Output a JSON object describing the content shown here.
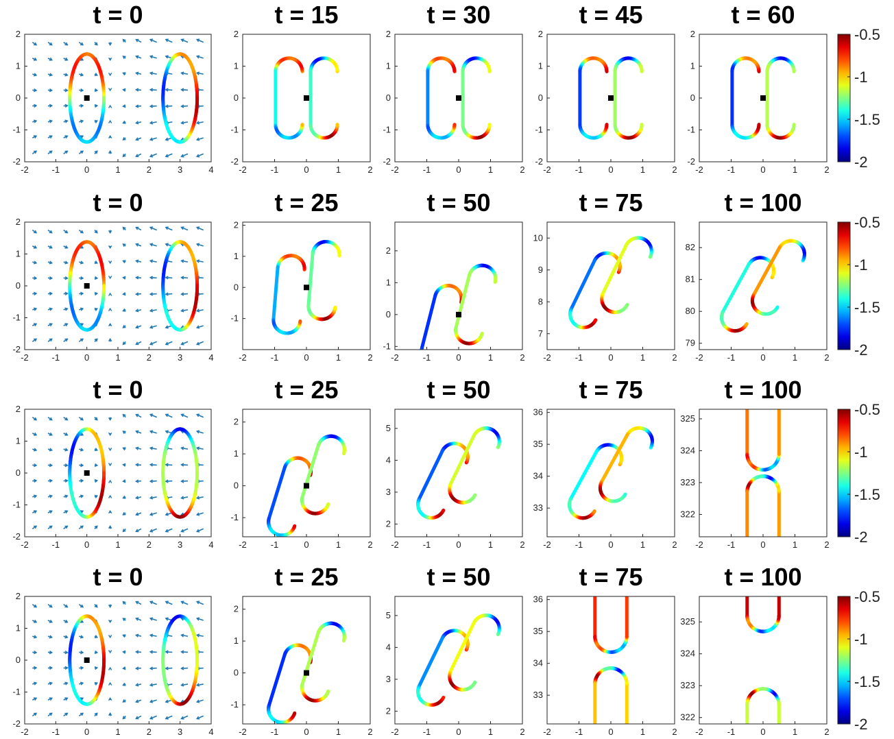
{
  "chart_data": {
    "type": "line",
    "colorbar": {
      "range": [
        -2,
        -0.5
      ],
      "ticks": [
        "-0.5",
        "-1",
        "-1.5",
        "-2"
      ],
      "colormap": "jet"
    },
    "rows": [
      {
        "panels": [
          {
            "title": "t = 0",
            "xlim": [
              -2,
              4
            ],
            "ylim": [
              -2,
              2
            ],
            "xticks": [
              "-2",
              "-1",
              "0",
              "1",
              "2",
              "3",
              "4"
            ],
            "yticks": [
              "2",
              "1",
              "0",
              "-1",
              "-2"
            ],
            "quiver": true,
            "curve": "ellipses",
            "colorPhase": 0.0,
            "marker": [
              0,
              0
            ]
          },
          {
            "title": "t = 15",
            "xlim": [
              -2,
              2
            ],
            "ylim": [
              -2,
              2
            ],
            "xticks": [
              "-2",
              "-1",
              "0",
              "1",
              "2"
            ],
            "yticks": [
              "2",
              "1",
              "0",
              "-1",
              "-2"
            ],
            "curve": "pair",
            "tilt": 0,
            "colorPhase": 0.3,
            "marker": [
              0,
              0
            ]
          },
          {
            "title": "t = 30",
            "xlim": [
              -2,
              2
            ],
            "ylim": [
              -2,
              2
            ],
            "xticks": [
              "-2",
              "-1",
              "0",
              "1",
              "2"
            ],
            "yticks": [
              "2",
              "1",
              "0",
              "-1",
              "-2"
            ],
            "curve": "pair",
            "tilt": 0,
            "colorPhase": 0.6,
            "marker": [
              0,
              0
            ]
          },
          {
            "title": "t = 45",
            "xlim": [
              -2,
              2
            ],
            "ylim": [
              -2,
              2
            ],
            "xticks": [
              "-2",
              "-1",
              "0",
              "1",
              "2"
            ],
            "yticks": [
              "2",
              "1",
              "0",
              "-1",
              "-2"
            ],
            "curve": "pair",
            "tilt": 0,
            "colorPhase": 0.9,
            "marker": [
              0,
              0
            ]
          },
          {
            "title": "t = 60",
            "xlim": [
              -2,
              2
            ],
            "ylim": [
              -2,
              2
            ],
            "xticks": [
              "-2",
              "-1",
              "0",
              "1",
              "2"
            ],
            "yticks": [
              "2",
              "1",
              "0",
              "-1",
              "-2"
            ],
            "curve": "pair",
            "tilt": 0,
            "colorPhase": 1.2,
            "marker": [
              0,
              0
            ]
          }
        ]
      },
      {
        "panels": [
          {
            "title": "t = 0",
            "xlim": [
              -2,
              4
            ],
            "ylim": [
              -2,
              2
            ],
            "xticks": [
              "-2",
              "-1",
              "0",
              "1",
              "2",
              "3",
              "4"
            ],
            "yticks": [
              "2",
              "1",
              "0",
              "-1",
              "-2"
            ],
            "quiver": true,
            "curve": "ellipses",
            "colorPhase": 0.2,
            "marker": [
              0,
              0
            ]
          },
          {
            "title": "t = 25",
            "xlim": [
              -2,
              2
            ],
            "ylim": [
              -2,
              2.1
            ],
            "xticks": [
              "-2",
              "-1",
              "0",
              "1",
              "2"
            ],
            "yticks": [
              "2",
              "1",
              "0",
              "-1"
            ],
            "curve": "pair",
            "tilt": 0.08,
            "colorPhase": 0.5,
            "marker": [
              0,
              0
            ]
          },
          {
            "title": "t = 50",
            "xlim": [
              -2,
              2
            ],
            "ylim": [
              -1.1,
              2.9
            ],
            "xticks": [
              "-2",
              "-1",
              "0",
              "1",
              "2"
            ],
            "yticks": [
              "2",
              "1",
              "0",
              "-1"
            ],
            "curve": "pair",
            "tilt": 0.25,
            "colorPhase": 1.0,
            "marker": [
              0,
              0
            ]
          },
          {
            "title": "t = 75",
            "xlim": [
              -2,
              2
            ],
            "ylim": [
              6.5,
              10.5
            ],
            "xticks": [
              "-2",
              "-1",
              "0",
              "1",
              "2"
            ],
            "yticks": [
              "10",
              "9",
              "8",
              "7"
            ],
            "curve": "pair",
            "tilt": 0.45,
            "colorPhase": 1.6,
            "center": [
              0,
              8.6
            ]
          },
          {
            "title": "t = 100",
            "xlim": [
              -2,
              2
            ],
            "ylim": [
              78.8,
              82.8
            ],
            "xticks": [
              "-2",
              "-1",
              "0",
              "1",
              "2"
            ],
            "yticks": [
              "82",
              "81",
              "80",
              "79"
            ],
            "curve": "pair",
            "tilt": 0.5,
            "colorPhase": 2.2,
            "center": [
              0,
              80.8
            ]
          }
        ]
      },
      {
        "panels": [
          {
            "title": "t = 0",
            "xlim": [
              -2,
              4
            ],
            "ylim": [
              -2,
              2
            ],
            "xticks": [
              "-2",
              "-1",
              "0",
              "1",
              "2",
              "3",
              "4"
            ],
            "yticks": [
              "2",
              "1",
              "0",
              "-1",
              "-2"
            ],
            "quiver": true,
            "curve": "ellipses",
            "colorPhase": 1.8,
            "marker": [
              0,
              0
            ]
          },
          {
            "title": "t = 25",
            "xlim": [
              -2,
              2
            ],
            "ylim": [
              -1.6,
              2.4
            ],
            "xticks": [
              "-2",
              "-1",
              "0",
              "1",
              "2"
            ],
            "yticks": [
              "2",
              "1",
              "0",
              "-1"
            ],
            "curve": "pair",
            "tilt": 0.3,
            "colorPhase": 0.8,
            "marker": [
              0,
              0
            ]
          },
          {
            "title": "t = 50",
            "xlim": [
              -2,
              2
            ],
            "ylim": [
              1.6,
              5.6
            ],
            "xticks": [
              "-2",
              "-1",
              "0",
              "1",
              "2"
            ],
            "yticks": [
              "5",
              "4",
              "3",
              "2"
            ],
            "curve": "pair",
            "tilt": 0.45,
            "colorPhase": 1.5,
            "center": [
              0,
              3.6
            ]
          },
          {
            "title": "t = 75",
            "xlim": [
              -2,
              2
            ],
            "ylim": [
              32.1,
              36.1
            ],
            "xticks": [
              "-2",
              "-1",
              "0",
              "1",
              "2"
            ],
            "yticks": [
              "36",
              "35",
              "34",
              "33"
            ],
            "curve": "pair",
            "tilt": 0.5,
            "colorPhase": 2.1,
            "center": [
              0,
              34.1
            ]
          },
          {
            "title": "t = 100",
            "xlim": [
              -2,
              2
            ],
            "ylim": [
              321.3,
              325.3
            ],
            "xticks": [
              "-2",
              "-1",
              "0",
              "1",
              "2"
            ],
            "yticks": [
              "325",
              "324",
              "323",
              "322"
            ],
            "curve": "arches",
            "gap": 0.2,
            "colorPhase": 0.4,
            "center": [
              0,
              323.3
            ]
          }
        ]
      },
      {
        "panels": [
          {
            "title": "t = 0",
            "xlim": [
              -2,
              4
            ],
            "ylim": [
              -2,
              2
            ],
            "xticks": [
              "-2",
              "-1",
              "0",
              "1",
              "2",
              "3",
              "4"
            ],
            "yticks": [
              "2",
              "1",
              "0",
              "-1",
              "-2"
            ],
            "quiver": true,
            "curve": "ellipses",
            "colorPhase": 1.4,
            "marker": [
              0,
              0
            ]
          },
          {
            "title": "t = 25",
            "xlim": [
              -2,
              2
            ],
            "ylim": [
              -1.6,
              2.4
            ],
            "xticks": [
              "-2",
              "-1",
              "0",
              "1",
              "2"
            ],
            "yticks": [
              "2",
              "1",
              "0",
              "-1"
            ],
            "curve": "pair",
            "tilt": 0.3,
            "colorPhase": 1.1,
            "marker": [
              0,
              0
            ]
          },
          {
            "title": "t = 50",
            "xlim": [
              -2,
              2
            ],
            "ylim": [
              1.6,
              5.6
            ],
            "xticks": [
              "-2",
              "-1",
              "0",
              "1",
              "2"
            ],
            "yticks": [
              "5",
              "4",
              "3",
              "2"
            ],
            "curve": "pair",
            "tilt": 0.45,
            "colorPhase": 1.7,
            "center": [
              0,
              3.6
            ]
          },
          {
            "title": "t = 75",
            "xlim": [
              -2,
              2
            ],
            "ylim": [
              32.1,
              36.1
            ],
            "xticks": [
              "-2",
              "-1",
              "0",
              "1",
              "2"
            ],
            "yticks": [
              "36",
              "35",
              "34",
              "33"
            ],
            "curve": "arches",
            "gap": 0.5,
            "colorPhase": 0.6,
            "center": [
              0,
              34.1
            ]
          },
          {
            "title": "t = 100",
            "xlim": [
              -2,
              2
            ],
            "ylim": [
              321.8,
              325.8
            ],
            "xticks": [
              "-2",
              "-1",
              "0",
              "1",
              "2"
            ],
            "yticks": [
              "325",
              "324",
              "323",
              "322"
            ],
            "curve": "arches",
            "gap": 1.8,
            "colorPhase": 1.2,
            "center": [
              0,
              323.8
            ]
          }
        ]
      }
    ]
  }
}
